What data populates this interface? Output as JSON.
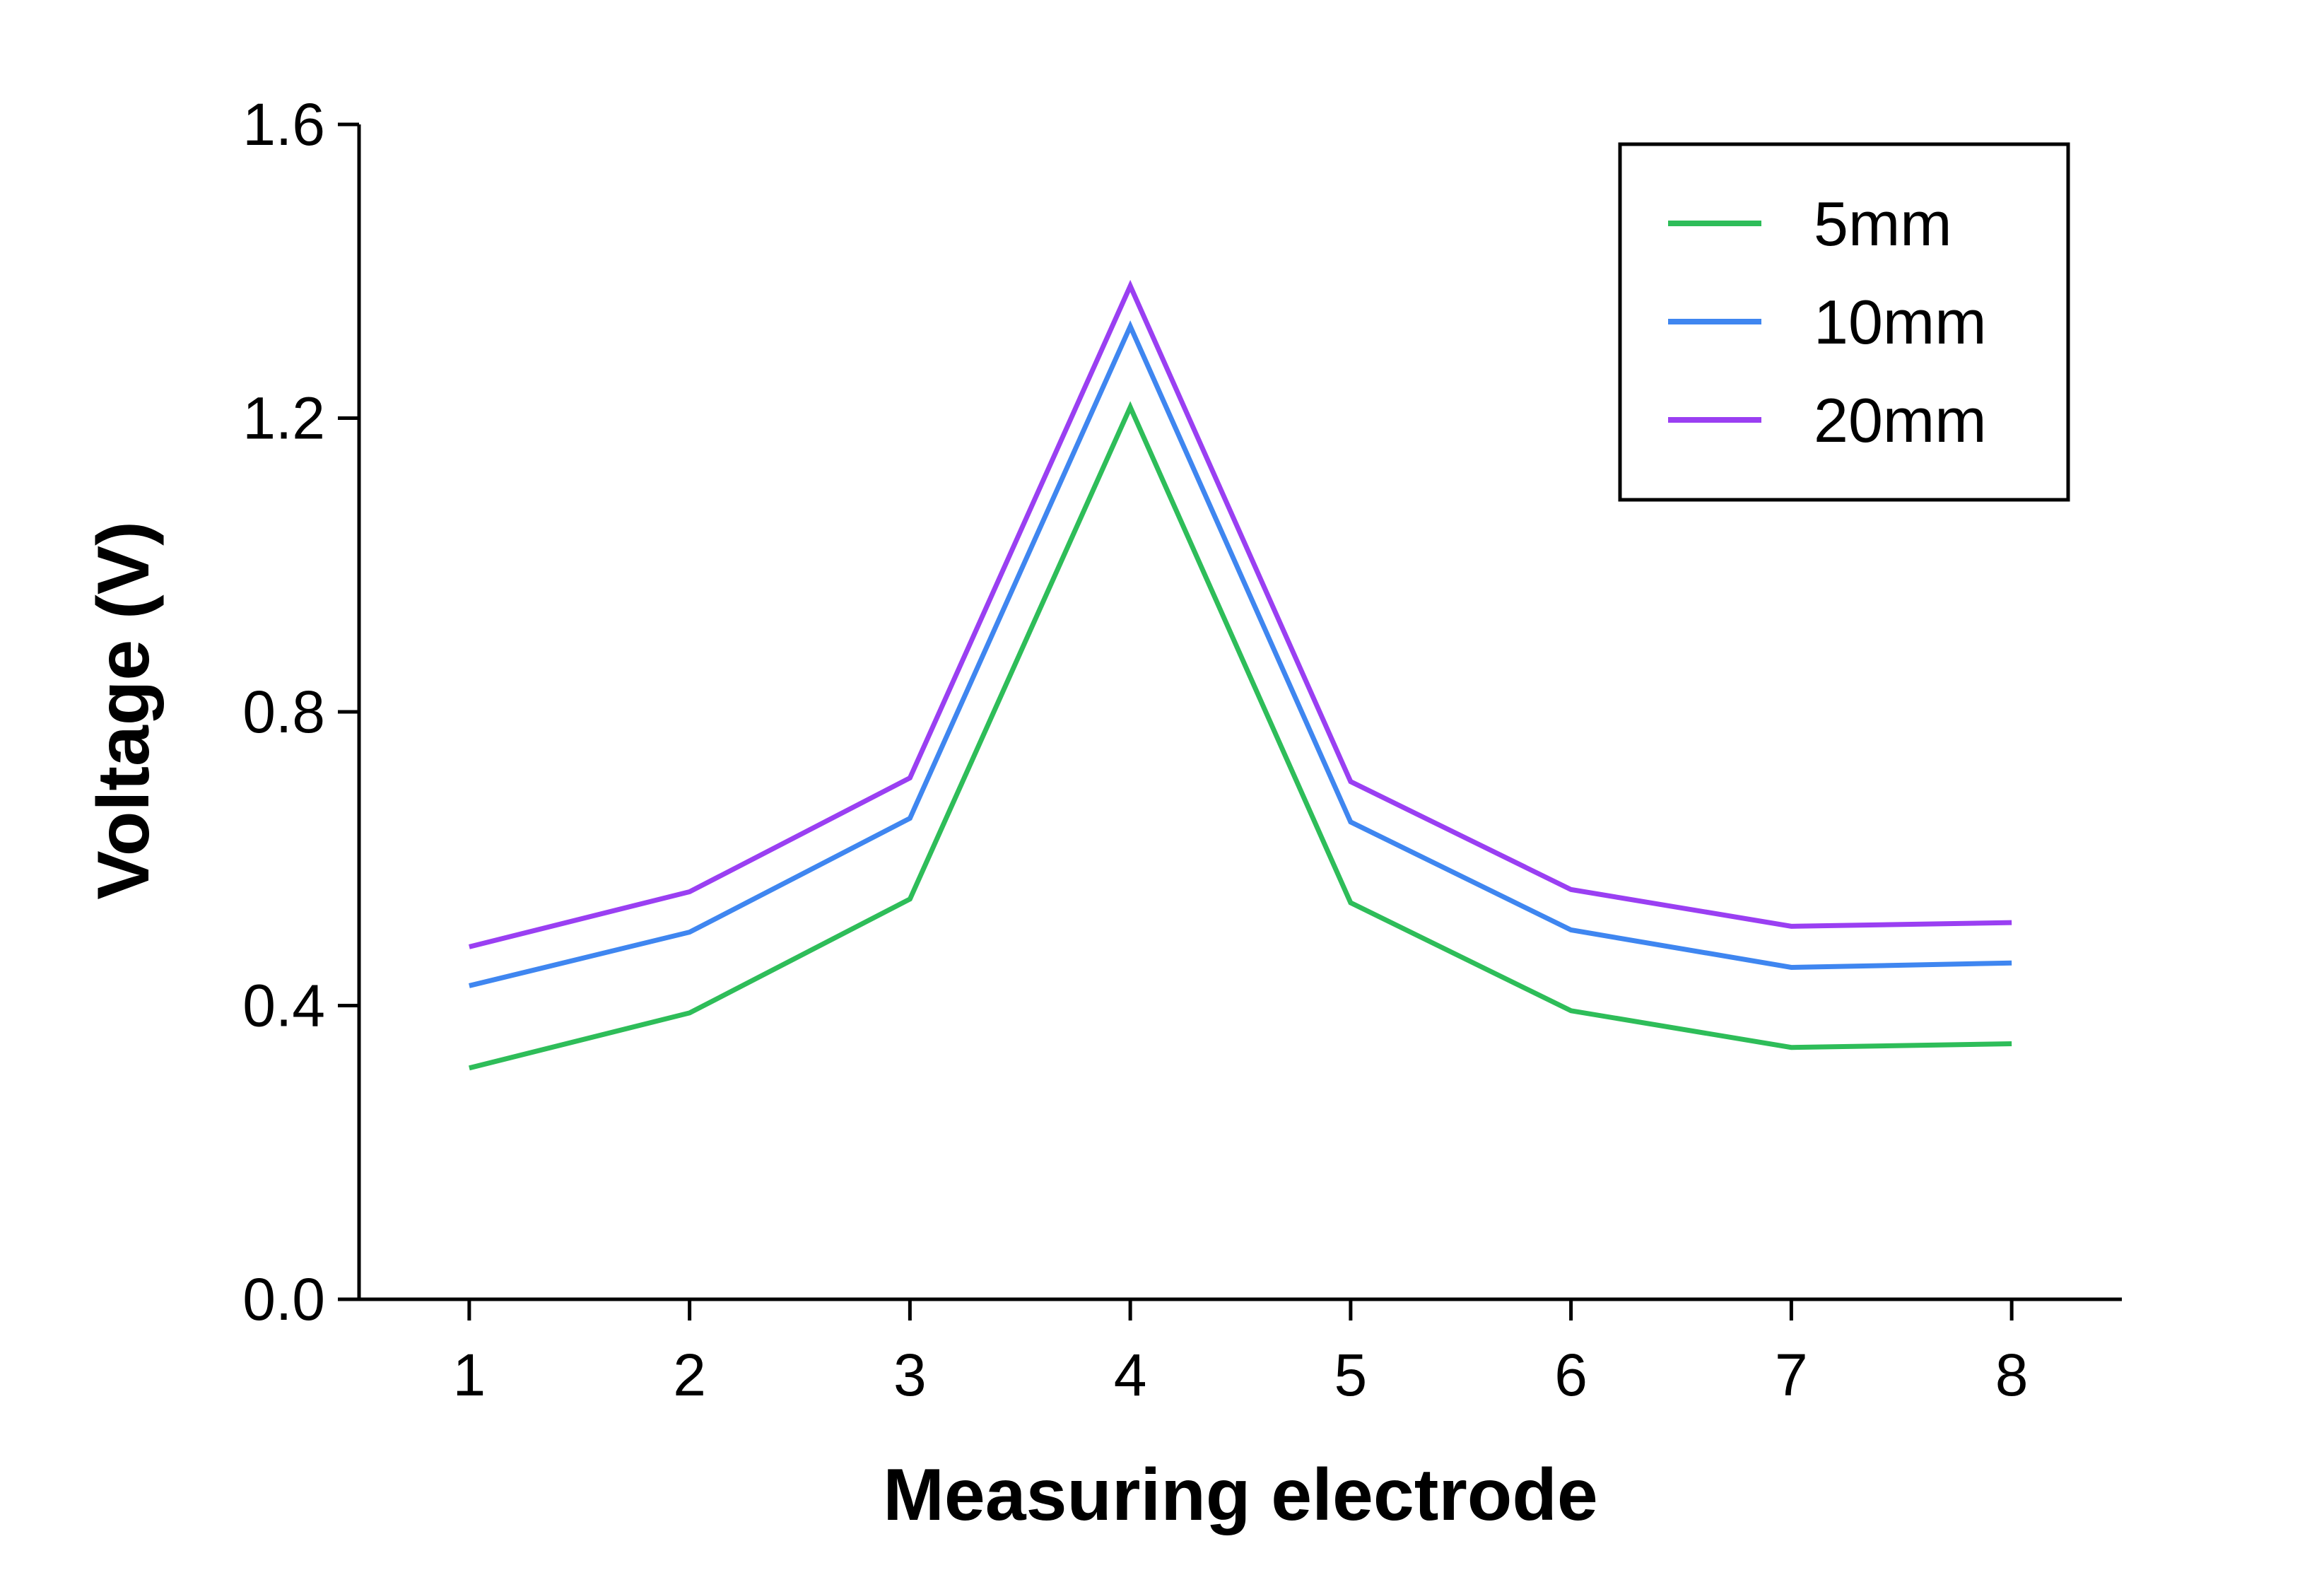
{
  "chart_data": {
    "type": "line",
    "title": "",
    "xlabel": "Measuring electrode",
    "ylabel": "Voltage (V)",
    "x": [
      1,
      2,
      3,
      4,
      5,
      6,
      7,
      8
    ],
    "x_tick_labels": [
      "1",
      "2",
      "3",
      "4",
      "5",
      "6",
      "7",
      "8"
    ],
    "xlim": [
      0.5,
      8.5
    ],
    "ylim": [
      0,
      1.6
    ],
    "y_ticks": [
      0.0,
      0.4,
      0.8,
      1.2,
      1.6
    ],
    "y_tick_labels": [
      "0.0",
      "0.4",
      "0.8",
      "1.2",
      "1.6"
    ],
    "grid": false,
    "legend_position": "top-right",
    "series": [
      {
        "name": "5mm",
        "color": "#2ebd59",
        "values": [
          0.315,
          0.39,
          0.545,
          1.215,
          0.54,
          0.393,
          0.343,
          0.348
        ]
      },
      {
        "name": "10mm",
        "color": "#3f86f0",
        "values": [
          0.427,
          0.5,
          0.655,
          1.325,
          0.65,
          0.503,
          0.452,
          0.458
        ]
      },
      {
        "name": "20mm",
        "color": "#9a3ff2",
        "values": [
          0.48,
          0.555,
          0.71,
          1.38,
          0.705,
          0.558,
          0.508,
          0.513
        ]
      }
    ]
  }
}
